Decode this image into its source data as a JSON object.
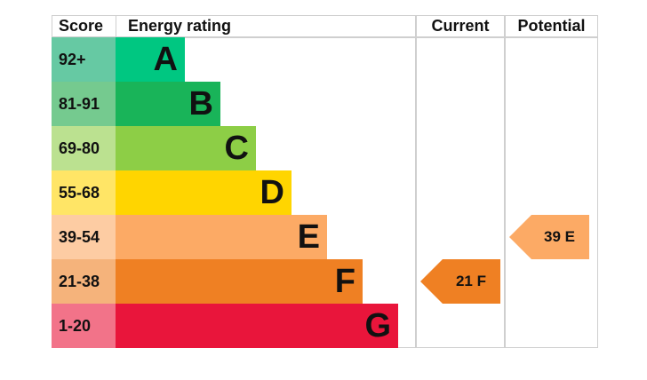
{
  "chart_data": {
    "type": "bar",
    "title": "Energy rating",
    "headers": {
      "score": "Score",
      "rating": "Energy rating",
      "current": "Current",
      "potential": "Potential"
    },
    "bands": [
      {
        "letter": "A",
        "score": "92+",
        "color": "#00c781",
        "score_color": "#66c9a3"
      },
      {
        "letter": "B",
        "score": "81-91",
        "color": "#19b459",
        "score_color": "#75ca8f"
      },
      {
        "letter": "C",
        "score": "69-80",
        "color": "#8dce46",
        "score_color": "#bbe190"
      },
      {
        "letter": "D",
        "score": "55-68",
        "color": "#ffd500",
        "score_color": "#ffe566"
      },
      {
        "letter": "E",
        "score": "39-54",
        "color": "#fcaa65",
        "score_color": "#fdcca3"
      },
      {
        "letter": "F",
        "score": "21-38",
        "color": "#ef8023",
        "score_color": "#f5b37b"
      },
      {
        "letter": "G",
        "score": "1-20",
        "color": "#e9153b",
        "score_color": "#f27389"
      }
    ],
    "current": {
      "value": 21,
      "band": "F",
      "label": "21  F"
    },
    "potential": {
      "value": 39,
      "band": "E",
      "label": "39  E"
    }
  }
}
